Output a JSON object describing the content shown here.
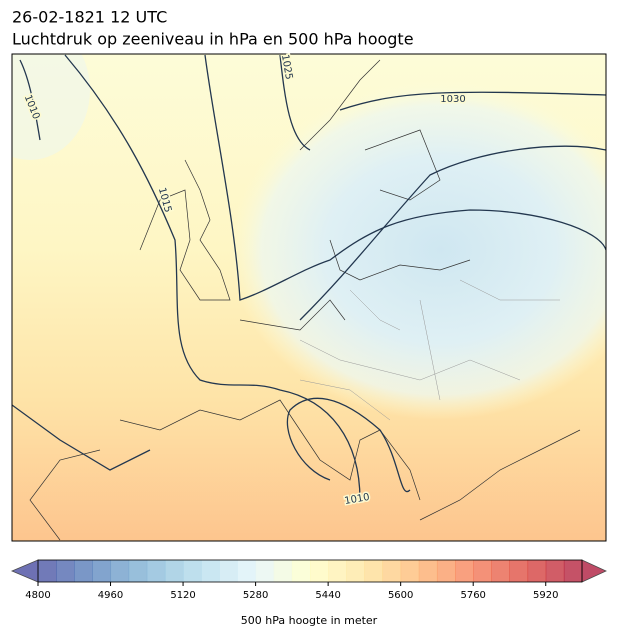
{
  "header": {
    "title": "26-02-1821 12 UTC",
    "subtitle": "Luchtdruk op zeeniveau in hPa en 500 hPa hoogte"
  },
  "contour_labels": [
    1010,
    1015,
    1025,
    1030,
    1010
  ],
  "colorbar": {
    "label": "500 hPa hoogte in meter",
    "lim": [
      4800,
      6000
    ],
    "ticks": [
      4800,
      4960,
      5120,
      5280,
      5440,
      5600,
      5760,
      5920
    ],
    "n_colors": 30,
    "colors": [
      "#313695",
      "#4575b4",
      "#74add1",
      "#abd9e9",
      "#e0f3f8",
      "#ffffbf",
      "#fee090",
      "#fdae61",
      "#f46d43",
      "#d73027",
      "#a50026"
    ]
  }
}
